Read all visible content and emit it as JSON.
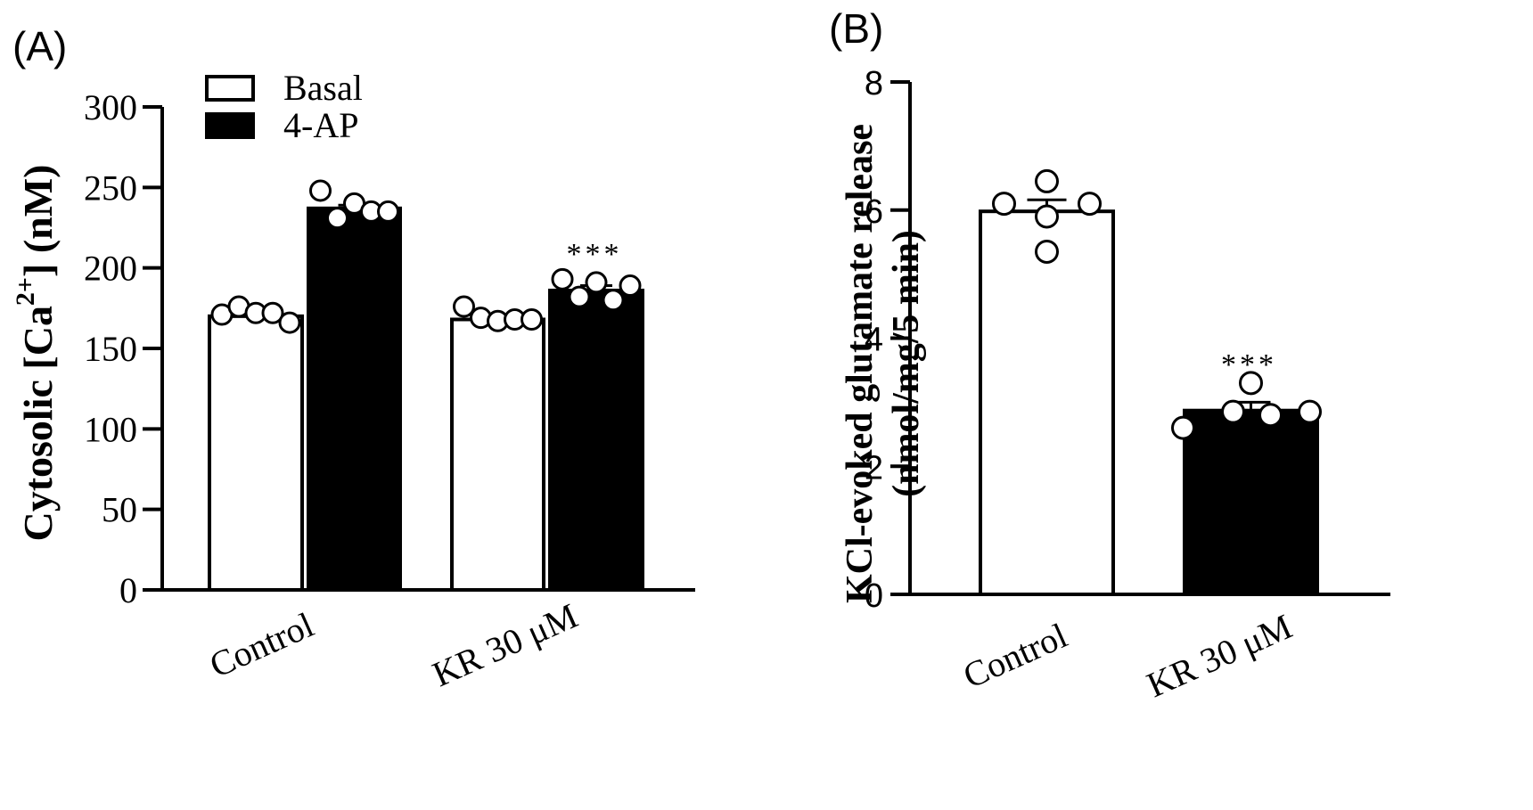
{
  "panels": {
    "a_label": "(A)",
    "b_label": "(B)"
  },
  "chart_data": [
    {
      "type": "bar",
      "panel": "(A)",
      "title": "",
      "xlabel": "",
      "ylabel_main": "Cytosolic [Ca",
      "ylabel_sup": "2+",
      "ylabel_tail": "] (nM)",
      "ylim": [
        0,
        300
      ],
      "yticks": [
        0,
        50,
        100,
        150,
        200,
        250,
        300
      ],
      "categories": [
        "Control",
        "KR 30 μM"
      ],
      "legend_position": "top-left",
      "series": [
        {
          "name": "Basal",
          "fill": "#ffffff",
          "values": [
            170,
            168
          ],
          "sem": [
            2,
            2
          ],
          "points": [
            [
              171,
              176,
              172,
              172,
              166
            ],
            [
              176,
              169,
              167,
              168,
              168
            ]
          ]
        },
        {
          "name": "4-AP",
          "fill": "#000000",
          "values": [
            237,
            186
          ],
          "sem": [
            2,
            3
          ],
          "points": [
            [
              248,
              231,
              240,
              235,
              235
            ],
            [
              193,
              182,
              191,
              180,
              189
            ]
          ]
        }
      ],
      "annotations": [
        {
          "category": "KR 30 μM",
          "series": "4-AP",
          "text": "***"
        }
      ]
    },
    {
      "type": "bar",
      "panel": "(B)",
      "title": "",
      "xlabel": "",
      "ylabel_line1": "KCl-evoked glutamate release",
      "ylabel_line2": "(nmol/mg/5 min)",
      "ylim": [
        0,
        8
      ],
      "yticks": [
        0,
        2,
        4,
        6,
        8
      ],
      "categories": [
        "Control",
        "KR 30 μM"
      ],
      "values": [
        5.98,
        2.87
      ],
      "sem": [
        0.18,
        0.13
      ],
      "fills": [
        "#ffffff",
        "#000000"
      ],
      "points": [
        [
          6.1,
          5.9,
          6.45,
          5.35,
          6.1
        ],
        [
          2.6,
          2.85,
          3.3,
          2.8,
          2.85
        ]
      ],
      "annotations": [
        {
          "category": "KR 30 μM",
          "text": "***"
        }
      ]
    }
  ]
}
